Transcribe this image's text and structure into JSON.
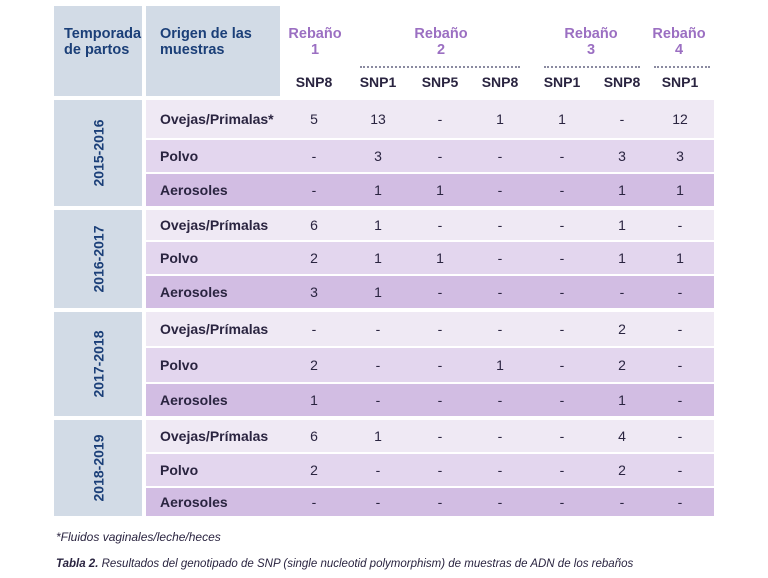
{
  "header": {
    "season_label": "Temporada\nde partos",
    "origin_label": "Origen de las\nmuestras",
    "herds": [
      "Rebaño\n1",
      "Rebaño\n2",
      "Rebaño\n3",
      "Rebaño\n4"
    ],
    "snp_columns": [
      "SNP8",
      "SNP1",
      "SNP5",
      "SNP8",
      "SNP1",
      "SNP8",
      "SNP1"
    ]
  },
  "seasons": [
    {
      "label": "2015-2016",
      "rows": [
        {
          "origin": "Ovejas/Primalas*",
          "values": [
            "5",
            "13",
            "-",
            "1",
            "1",
            "-",
            "12"
          ]
        },
        {
          "origin": "Polvo",
          "values": [
            "-",
            "3",
            "-",
            "-",
            "-",
            "3",
            "3"
          ]
        },
        {
          "origin": "Aerosoles",
          "values": [
            "-",
            "1",
            "1",
            "-",
            "-",
            "1",
            "1"
          ]
        }
      ]
    },
    {
      "label": "2016-2017",
      "rows": [
        {
          "origin": "Ovejas/Prímalas",
          "values": [
            "6",
            "1",
            "-",
            "-",
            "-",
            "1",
            "-"
          ]
        },
        {
          "origin": "Polvo",
          "values": [
            "2",
            "1",
            "1",
            "-",
            "-",
            "1",
            "1"
          ]
        },
        {
          "origin": "Aerosoles",
          "values": [
            "3",
            "1",
            "-",
            "-",
            "-",
            "-",
            "-"
          ]
        }
      ]
    },
    {
      "label": "2017-2018",
      "rows": [
        {
          "origin": "Ovejas/Prímalas",
          "values": [
            "-",
            "-",
            "-",
            "-",
            "-",
            "2",
            "-"
          ]
        },
        {
          "origin": "Polvo",
          "values": [
            "2",
            "-",
            "-",
            "1",
            "-",
            "2",
            "-"
          ]
        },
        {
          "origin": "Aerosoles",
          "values": [
            "1",
            "-",
            "-",
            "-",
            "-",
            "1",
            "-"
          ]
        }
      ]
    },
    {
      "label": "2018-2019",
      "rows": [
        {
          "origin": "Ovejas/Prímalas",
          "values": [
            "6",
            "1",
            "-",
            "-",
            "-",
            "4",
            "-"
          ]
        },
        {
          "origin": "Polvo",
          "values": [
            "2",
            "-",
            "-",
            "-",
            "-",
            "2",
            "-"
          ]
        },
        {
          "origin": "Aerosoles",
          "values": [
            "-",
            "-",
            "-",
            "-",
            "-",
            "-",
            "-"
          ]
        }
      ]
    }
  ],
  "footnote": "*Fluidos vaginales/leche/heces",
  "caption": {
    "label": "Tabla 2.",
    "text": " Resultados del genotipado de SNP (single nucleotid polymorphism) de muestras de ADN de los rebaños"
  }
}
